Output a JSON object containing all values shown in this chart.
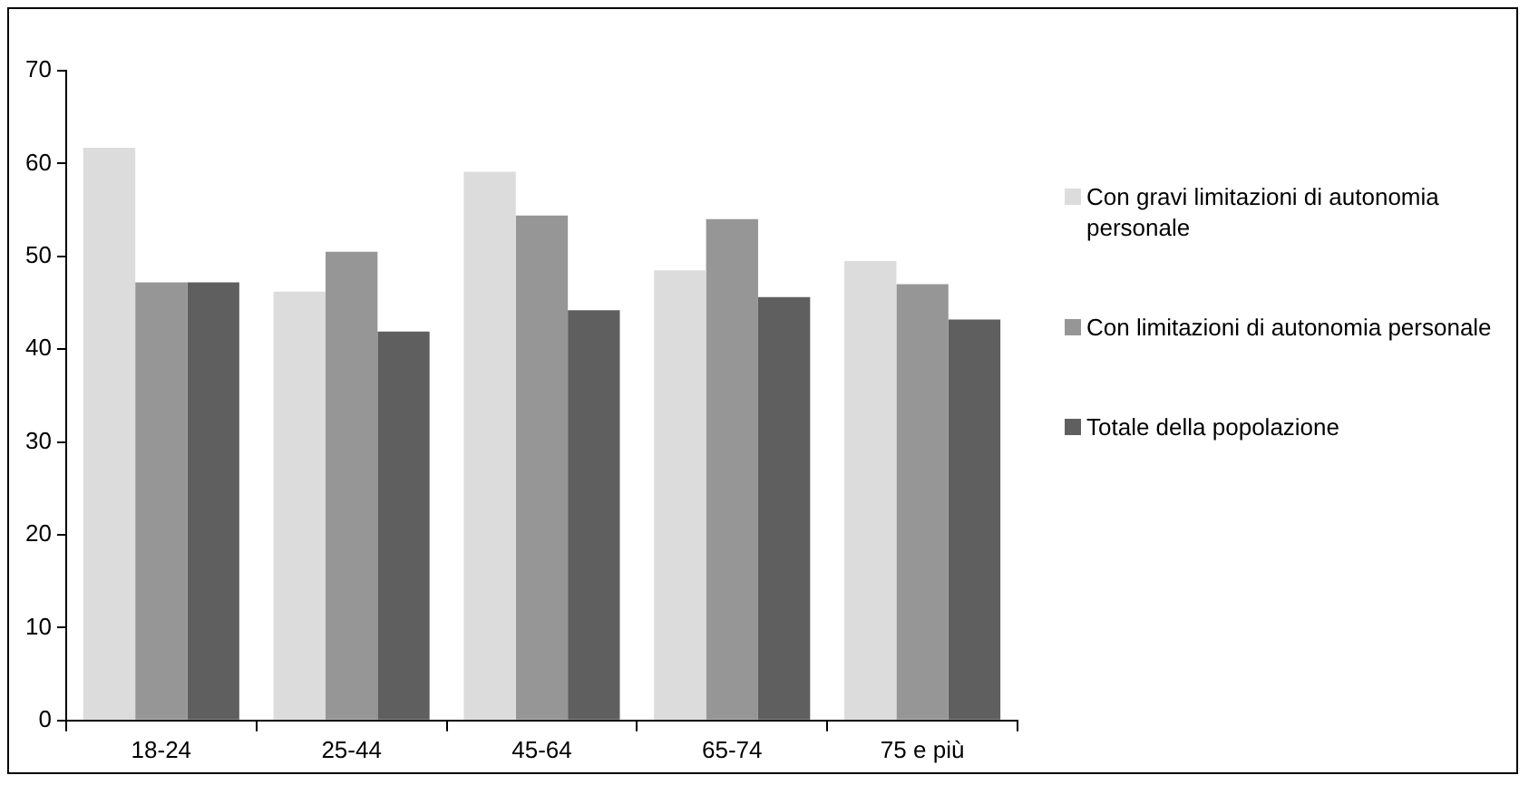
{
  "chart_data": {
    "type": "bar",
    "categories": [
      "18-24",
      "25-44",
      "45-64",
      "65-74",
      "75 e più"
    ],
    "series": [
      {
        "name": "Con gravi limitazioni di autonomia personale",
        "color": "#dcdcdc",
        "values": [
          61.7,
          46.2,
          59.1,
          48.5,
          49.5
        ]
      },
      {
        "name": "Con limitazioni di autonomia personale",
        "color": "#969696",
        "values": [
          47.2,
          50.5,
          54.4,
          54.0,
          47.0
        ]
      },
      {
        "name": "Totale della popolazione",
        "color": "#5f5f5f",
        "values": [
          47.2,
          41.9,
          44.2,
          45.6,
          43.2
        ]
      }
    ],
    "ylim": [
      0,
      70
    ],
    "yticks": [
      0,
      10,
      20,
      30,
      40,
      50,
      60,
      70
    ],
    "grid": false,
    "legend": "right"
  }
}
